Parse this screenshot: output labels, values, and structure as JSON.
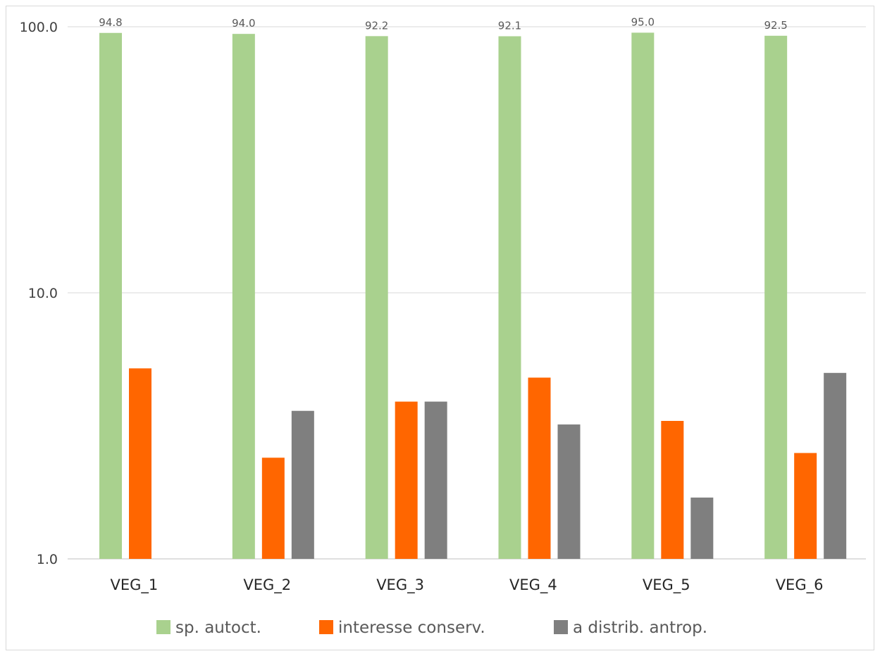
{
  "chart_data": {
    "type": "bar",
    "title": "",
    "xlabel": "",
    "ylabel": "",
    "yscale": "log",
    "ylim": [
      1,
      100
    ],
    "yticks": [
      "1.0",
      "10.0",
      "100.0"
    ],
    "grid": true,
    "legend_position": "bottom",
    "categories": [
      "VEG_1",
      "VEG_2",
      "VEG_3",
      "VEG_4",
      "VEG_5",
      "VEG_6"
    ],
    "series": [
      {
        "name": "sp. autoct.",
        "color": "#a9d18e",
        "values": [
          94.8,
          94.0,
          92.2,
          92.1,
          95.0,
          92.5
        ],
        "data_labels": [
          "94.8",
          "94.0",
          "92.2",
          "92.1",
          "95.0",
          "92.5"
        ]
      },
      {
        "name": "interesse conserv.",
        "color": "#ff6600",
        "values": [
          5.2,
          2.4,
          3.9,
          4.8,
          3.3,
          2.5
        ]
      },
      {
        "name": "a distrib. antrop.",
        "color": "#7f7f7f",
        "values": [
          null,
          3.6,
          3.9,
          3.2,
          1.7,
          5.0
        ]
      }
    ]
  }
}
